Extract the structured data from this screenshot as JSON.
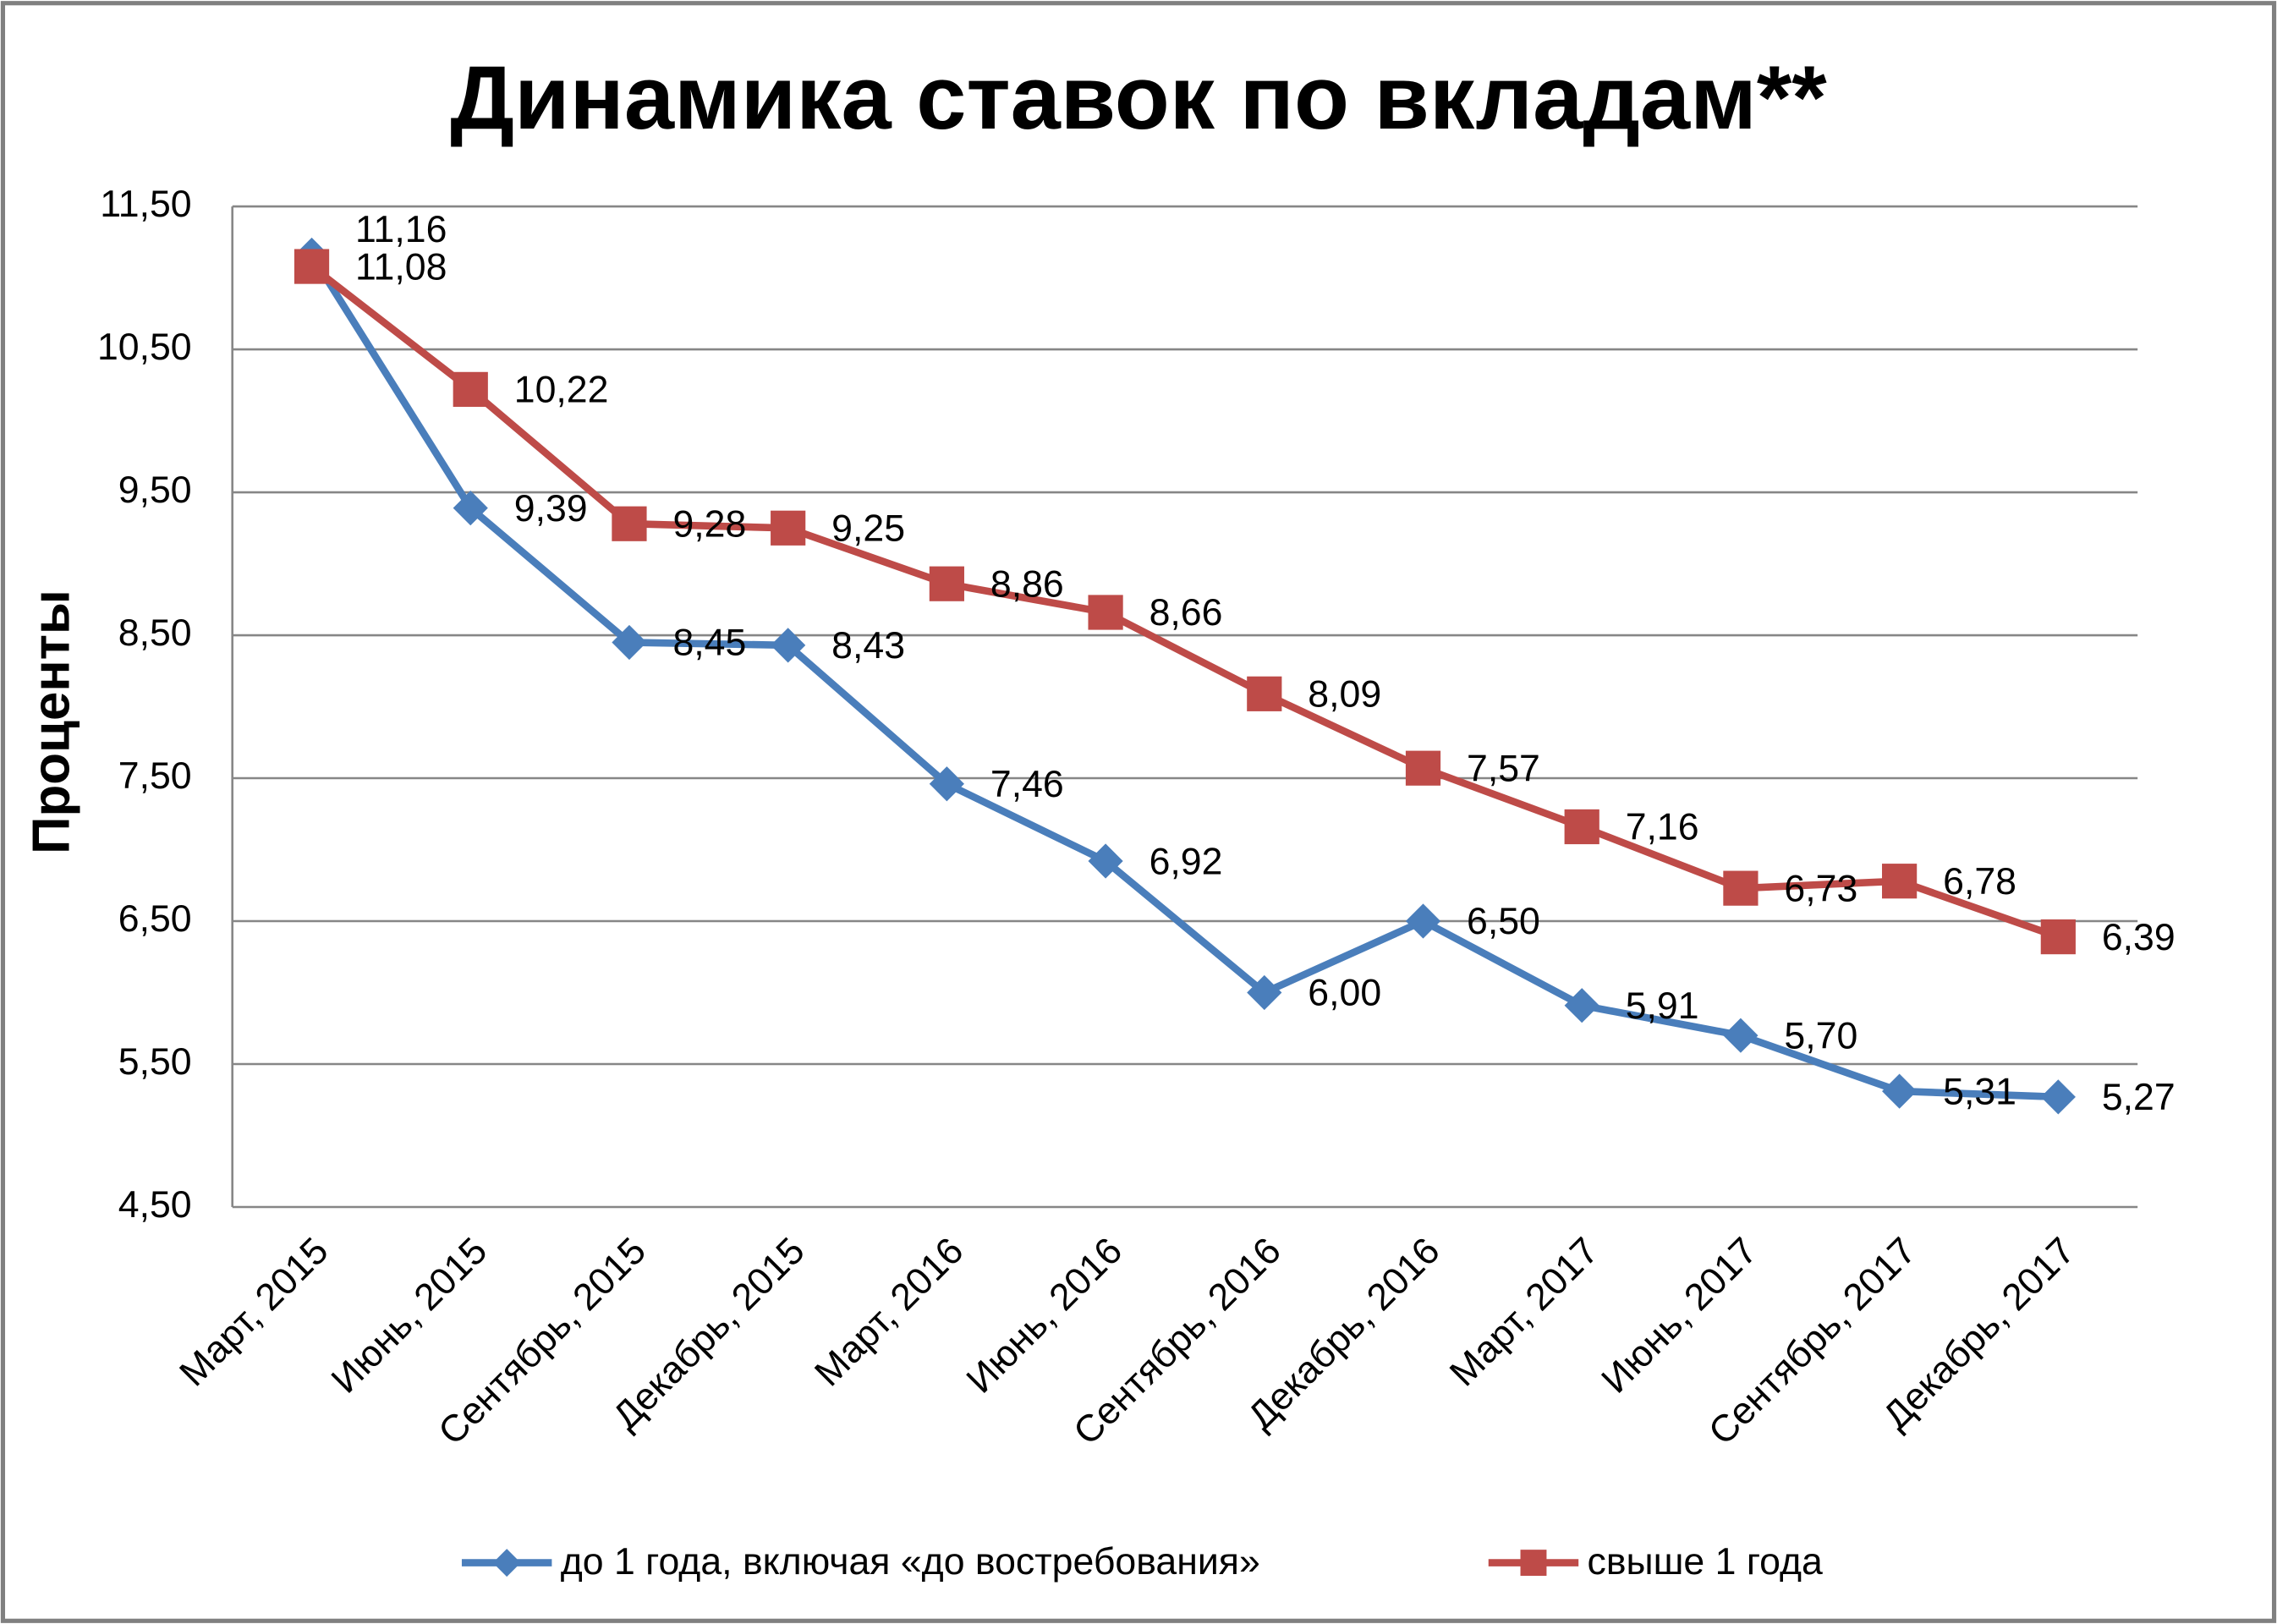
{
  "chart_data": {
    "type": "line",
    "title": "Динамика ставок по вкладам**",
    "y_label": "Проценты",
    "categories": [
      "Март, 2015",
      "Июнь, 2015",
      "Сентябрь, 2015",
      "Декабрь, 2015",
      "Март, 2016",
      "Июнь, 2016",
      "Сентябрь, 2016",
      "Декабрь, 2016",
      "Март, 2017",
      "Июнь, 2017",
      "Сентябрь, 2017",
      "Декабрь, 2017"
    ],
    "series": [
      {
        "name": "до 1 года, включая «до востребования»",
        "color": "#4a7ebb",
        "marker": "diamond",
        "values": [
          11.16,
          9.39,
          8.45,
          8.43,
          7.46,
          6.92,
          6.0,
          6.5,
          5.91,
          5.7,
          5.31,
          5.27
        ],
        "value_labels": [
          "11,16",
          "9,39",
          "8,45",
          "8,43",
          "7,46",
          "6,92",
          "6,00",
          "6,50",
          "5,91",
          "5,70",
          "5,31",
          "5,27"
        ]
      },
      {
        "name": "свыше 1 года",
        "color": "#be4b48",
        "marker": "square",
        "values": [
          11.08,
          10.22,
          9.28,
          9.25,
          8.86,
          8.66,
          8.09,
          7.57,
          7.16,
          6.73,
          6.78,
          6.39
        ],
        "value_labels": [
          "11,08",
          "10,22",
          "9,28",
          "9,25",
          "8,86",
          "8,66",
          "8,09",
          "7,57",
          "7,16",
          "6,73",
          "6,78",
          "6,39"
        ]
      }
    ],
    "ylim": [
      4.5,
      11.5
    ],
    "yticks": [
      {
        "value": 4.5,
        "label": "4,50"
      },
      {
        "value": 5.5,
        "label": "5,50"
      },
      {
        "value": 6.5,
        "label": "6,50"
      },
      {
        "value": 7.5,
        "label": "7,50"
      },
      {
        "value": 8.5,
        "label": "8,50"
      },
      {
        "value": 9.5,
        "label": "9,50"
      },
      {
        "value": 10.5,
        "label": "10,50"
      },
      {
        "value": 11.5,
        "label": "11,50"
      }
    ],
    "grid": true,
    "legend": "bottom"
  }
}
